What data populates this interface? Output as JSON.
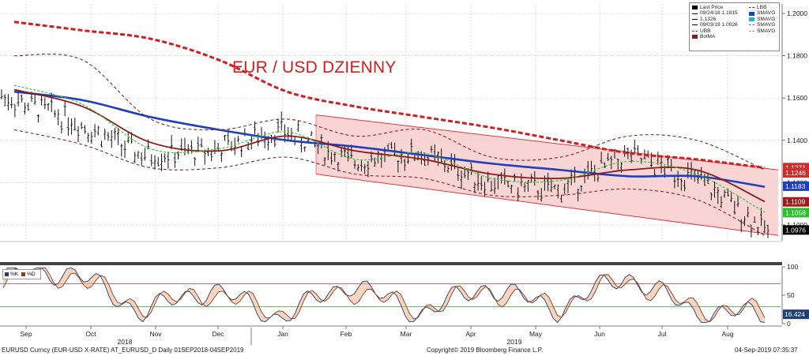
{
  "chart_data": [
    {
      "type": "line",
      "title": "EUR / USD DZIENNY",
      "x_axis": {
        "month_labels": [
          "Sep",
          "Oct",
          "Nov",
          "Dec",
          "Jan",
          "Feb",
          "Mar",
          "Apr",
          "May",
          "Jun",
          "Jul",
          "Aug"
        ],
        "year_labels": [
          "2018",
          "2019"
        ]
      },
      "y_axis": {
        "ticks": [
          "1.2000",
          "1.1800",
          "1.1600",
          "1.1400",
          "1.1200",
          "1.1000"
        ],
        "range": [
          1.0925,
          1.2045
        ]
      },
      "last_value_labels": [
        {
          "value": "1.1271",
          "color": "#c9302c"
        },
        {
          "value": "1.1246",
          "color": "#c9302c"
        },
        {
          "value": "1.1183",
          "color": "#1f3fbf"
        },
        {
          "value": "1.1109",
          "color": "#9b1c1c"
        },
        {
          "value": "1.1058",
          "color": "#2bbf2b"
        },
        {
          "value": "1.0976",
          "color": "#000000"
        }
      ],
      "legend": {
        "placement": "top-right",
        "entries": [
          {
            "label": "Last Price",
            "color": "#000000"
          },
          {
            "label": "09/24/18 1.1815",
            "color": "#000000"
          },
          {
            "label": "1.1326",
            "color": "#000000"
          },
          {
            "label": "09/03/19 1.0926",
            "color": "#000000"
          },
          {
            "label": "UBB",
            "color": "#8b2020"
          },
          {
            "label": "BolMA",
            "color": "#8b1a1a"
          },
          {
            "label": "LBB",
            "color": "#8b2020"
          },
          {
            "label": "SMAVG",
            "color": "#1f3fbf"
          },
          {
            "label": "SMAVG",
            "color": "#1fb3d6"
          },
          {
            "label": "SMAVG",
            "color": "#d04040"
          },
          {
            "label": "SMAVG",
            "color": "#33cc33"
          }
        ]
      },
      "series": [
        {
          "name": "SMAVG",
          "color": "#d01d1d",
          "style": "dashed",
          "values": [
            1.196,
            1.192,
            1.188,
            1.178,
            1.163,
            1.156,
            1.151,
            1.146,
            1.14,
            1.134,
            1.131,
            1.127
          ]
        },
        {
          "name": "SMAVG",
          "color": "#1f3fbf",
          "values": [
            1.163,
            1.159,
            1.151,
            1.145,
            1.14,
            1.137,
            1.133,
            1.129,
            1.126,
            1.123,
            1.123,
            1.118
          ]
        },
        {
          "name": "BolMA",
          "color": "#8b1a1a",
          "values": [
            1.164,
            1.156,
            1.139,
            1.135,
            1.142,
            1.135,
            1.131,
            1.124,
            1.122,
            1.126,
            1.126,
            1.111
          ]
        },
        {
          "name": "SMAVG",
          "color": "#33cc33",
          "style": "dashed",
          "values": [
            1.166,
            1.157,
            1.136,
            1.136,
            1.144,
            1.131,
            1.134,
            1.122,
            1.121,
            1.13,
            1.124,
            1.106
          ]
        },
        {
          "name": "UBB",
          "color": "#8b2020",
          "style": "dashed",
          "values": [
            1.18,
            1.178,
            1.15,
            1.145,
            1.15,
            1.142,
            1.145,
            1.132,
            1.132,
            1.142,
            1.14,
            1.126
          ]
        },
        {
          "name": "LBB",
          "color": "#8b2020",
          "style": "dashed",
          "values": [
            1.145,
            1.138,
            1.127,
            1.127,
            1.132,
            1.124,
            1.122,
            1.114,
            1.114,
            1.117,
            1.112,
            1.095
          ]
        },
        {
          "name": "Last Price",
          "color": "#000000",
          "style": "ohlc",
          "values": [
            1.161,
            1.15,
            1.133,
            1.135,
            1.145,
            1.13,
            1.134,
            1.12,
            1.116,
            1.133,
            1.121,
            1.097
          ]
        }
      ],
      "channel": {
        "upper": [
          1.152,
          1.126
        ],
        "lower": [
          1.124,
          1.095
        ],
        "fill": "#f7cccc",
        "edge": "#e23a3a"
      }
    },
    {
      "type": "line",
      "title": "",
      "y_axis": {
        "ticks": [
          "100",
          "50",
          "0"
        ],
        "range": [
          0,
          100
        ],
        "levels": [
          70,
          30
        ]
      },
      "last_value_labels": [
        {
          "value": "16.424",
          "color": "#1f3f6f"
        }
      ],
      "legend": {
        "entries": [
          {
            "label": "%K",
            "color": "#1f3f6f"
          },
          {
            "label": "%D",
            "color": "#8b3a1a"
          }
        ]
      },
      "series": [
        {
          "name": "%K",
          "color": "#1f3f6f",
          "values": [
            88,
            92,
            20,
            62,
            10,
            72,
            18,
            66,
            25,
            86,
            20,
            16.424
          ]
        },
        {
          "name": "%D",
          "color": "#8b3a1a",
          "values": [
            80,
            85,
            30,
            55,
            18,
            60,
            25,
            58,
            30,
            78,
            28,
            20
          ]
        }
      ]
    }
  ],
  "footer": {
    "left": "EURUSD Curncy (EUR-USD X-RATE) AT_EURUSD_D  Daily 01SEP2018-04SEP2019",
    "center": "Copyright© 2019 Bloomberg Finance L.P.",
    "right": "04-Sep-2019 07:35:37"
  }
}
